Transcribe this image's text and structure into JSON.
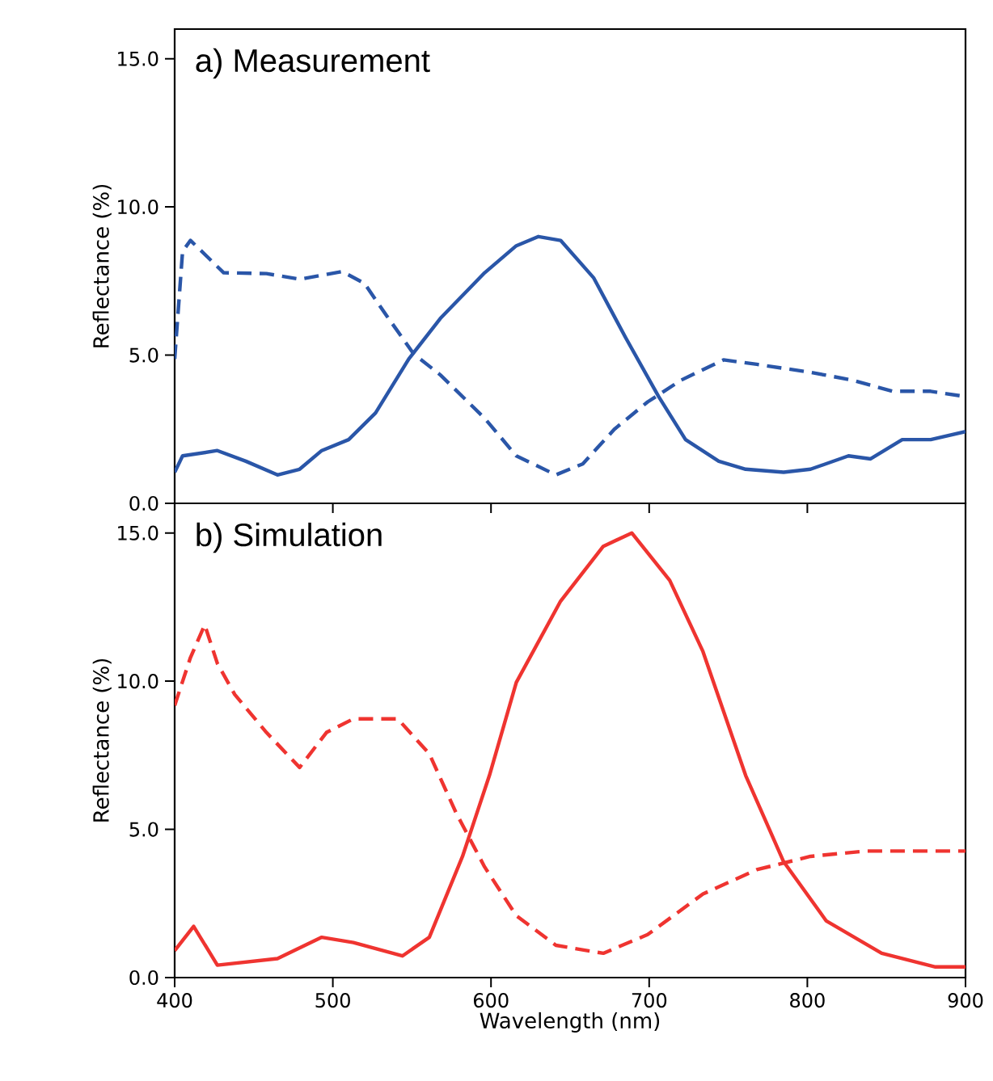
{
  "chart_data": [
    {
      "type": "line",
      "title": "a)  Measurement",
      "ylabel": "Reflectance (%)",
      "xlim": [
        400,
        900
      ],
      "ylim": [
        0,
        16
      ],
      "xticks": [
        400,
        500,
        600,
        700,
        800,
        900
      ],
      "yticks": [
        {
          "value": 0,
          "label": "0.0"
        },
        {
          "value": 5,
          "label": "5.0"
        },
        {
          "value": 10,
          "label": "10.0"
        },
        {
          "value": 15,
          "label": "15.0"
        }
      ],
      "tick_labels": "y",
      "series": [
        {
          "color": "#2a56a8",
          "line_style": "solid",
          "x": [
            400,
            405,
            427,
            445,
            465,
            479,
            493,
            510,
            527,
            548,
            568,
            596,
            616,
            630,
            644,
            665,
            685,
            706,
            723,
            744,
            761,
            785,
            802,
            826,
            840,
            860,
            878,
            900
          ],
          "values": [
            1.05,
            1.6,
            1.78,
            1.42,
            0.96,
            1.15,
            1.78,
            2.15,
            3.05,
            4.87,
            6.24,
            7.78,
            8.69,
            9.0,
            8.87,
            7.6,
            5.6,
            3.6,
            2.15,
            1.42,
            1.15,
            1.05,
            1.15,
            1.6,
            1.5,
            2.15,
            2.15,
            2.42
          ]
        },
        {
          "color": "#2a56a8",
          "line_style": "dashed",
          "x": [
            400,
            405,
            410,
            431,
            458,
            479,
            506,
            520,
            534,
            551,
            568,
            596,
            616,
            641,
            658,
            678,
            699,
            720,
            747,
            768,
            802,
            829,
            854,
            878,
            900
          ],
          "values": [
            4.87,
            8.5,
            8.87,
            7.78,
            7.75,
            7.56,
            7.82,
            7.42,
            6.33,
            5.05,
            4.33,
            2.87,
            1.6,
            0.96,
            1.33,
            2.5,
            3.42,
            4.15,
            4.84,
            4.69,
            4.42,
            4.15,
            3.78,
            3.78,
            3.6
          ]
        }
      ]
    },
    {
      "type": "line",
      "title": "b)  Simulation",
      "ylabel": "Reflectance (%)",
      "xlabel": "Wavelength (nm)",
      "xlim": [
        400,
        900
      ],
      "ylim": [
        0,
        16
      ],
      "xticks": [
        400,
        500,
        600,
        700,
        800,
        900
      ],
      "yticks": [
        {
          "value": 0,
          "label": "0.0"
        },
        {
          "value": 5,
          "label": "5.0"
        },
        {
          "value": 10,
          "label": "10.0"
        },
        {
          "value": 15,
          "label": "15.0"
        }
      ],
      "series": [
        {
          "color": "#ef3430",
          "line_style": "solid",
          "x": [
            400,
            412,
            427,
            465,
            493,
            513,
            544,
            561,
            582,
            599,
            616,
            644,
            671,
            689,
            713,
            734,
            761,
            785,
            812,
            847,
            881,
            900
          ],
          "values": [
            0.91,
            1.73,
            0.42,
            0.64,
            1.36,
            1.18,
            0.73,
            1.36,
            4.09,
            6.82,
            9.96,
            12.7,
            14.55,
            15.0,
            13.4,
            11.0,
            6.82,
            3.91,
            1.91,
            0.82,
            0.36,
            0.36
          ]
        },
        {
          "color": "#ef3430",
          "line_style": "dashed",
          "x": [
            400,
            410,
            419,
            427,
            438,
            458,
            479,
            496,
            513,
            541,
            561,
            578,
            596,
            616,
            641,
            671,
            699,
            734,
            768,
            802,
            837,
            900
          ],
          "values": [
            9.18,
            10.8,
            11.9,
            10.6,
            9.55,
            8.27,
            7.09,
            8.27,
            8.73,
            8.73,
            7.55,
            5.55,
            3.73,
            2.09,
            1.09,
            0.82,
            1.45,
            2.82,
            3.64,
            4.09,
            4.27,
            4.27
          ]
        }
      ]
    }
  ]
}
